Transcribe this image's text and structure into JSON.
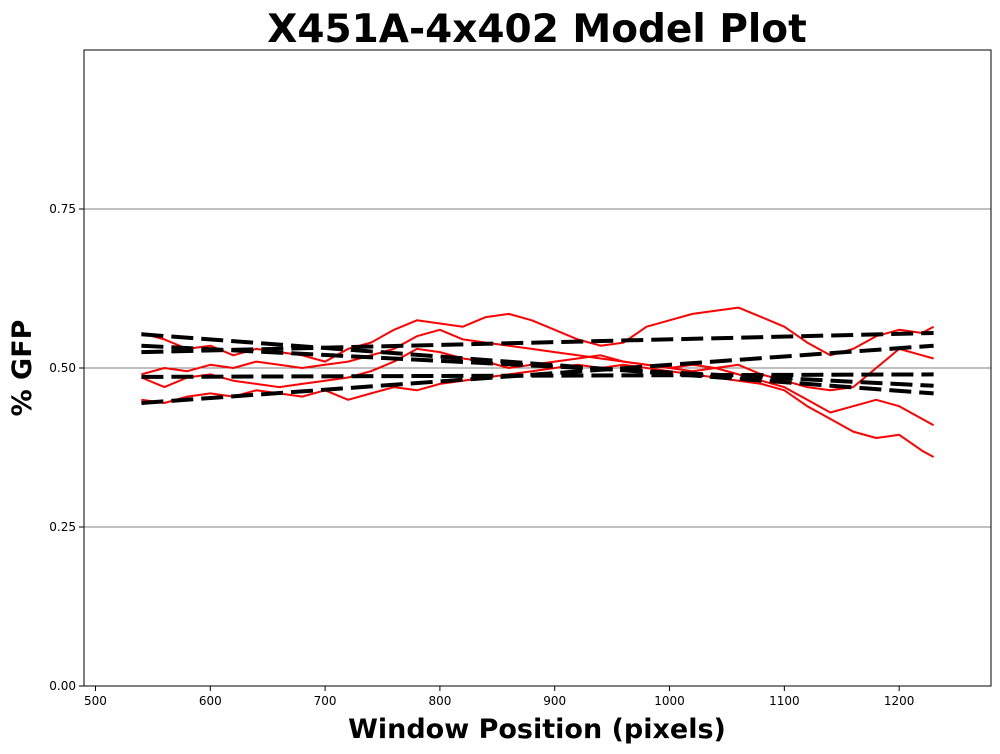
{
  "chart_data": {
    "type": "line",
    "title": "X451A-4x402 Model Plot",
    "xlabel": "Window Position (pixels)",
    "ylabel": "% GFP",
    "xlim": [
      490,
      1280
    ],
    "ylim": [
      0,
      1.0
    ],
    "x_ticks": [
      500,
      600,
      700,
      800,
      900,
      1000,
      1100,
      1200
    ],
    "y_ticks": [
      0.0,
      0.25,
      0.5,
      0.75
    ],
    "x_tick_labels": [
      "500",
      "600",
      "700",
      "800",
      "900",
      "1000",
      "1100",
      "1200"
    ],
    "y_tick_labels": [
      "0.00",
      "0.25",
      "0.50",
      "0.75"
    ],
    "grid": "horizontal lines at y ticks",
    "legend": "none",
    "colors": {
      "data": "#ff0000",
      "model": "#000000",
      "grid": "#808080"
    },
    "series": [
      {
        "style": "data",
        "x": [
          540,
          560,
          580,
          600,
          620,
          640,
          660,
          680,
          700,
          720,
          740,
          760,
          780,
          800,
          820,
          840,
          860,
          880,
          900,
          920,
          940,
          960,
          980,
          1000,
          1020,
          1040,
          1060,
          1080,
          1100,
          1120,
          1140,
          1160,
          1180,
          1200,
          1220,
          1230
        ],
        "y": [
          0.555,
          0.545,
          0.53,
          0.535,
          0.52,
          0.53,
          0.525,
          0.52,
          0.51,
          0.53,
          0.54,
          0.56,
          0.575,
          0.57,
          0.565,
          0.58,
          0.585,
          0.575,
          0.56,
          0.545,
          0.535,
          0.54,
          0.565,
          0.575,
          0.585,
          0.59,
          0.595,
          0.58,
          0.565,
          0.54,
          0.52,
          0.53,
          0.55,
          0.56,
          0.555,
          0.565
        ]
      },
      {
        "style": "data",
        "x": [
          540,
          560,
          580,
          600,
          620,
          640,
          660,
          680,
          700,
          720,
          740,
          760,
          780,
          800,
          820,
          840,
          860,
          880,
          900,
          920,
          940,
          960,
          980,
          1000,
          1020,
          1040,
          1060,
          1080,
          1100,
          1120,
          1140,
          1160,
          1180,
          1200,
          1220,
          1230
        ],
        "y": [
          0.49,
          0.5,
          0.495,
          0.505,
          0.5,
          0.51,
          0.505,
          0.5,
          0.505,
          0.51,
          0.52,
          0.53,
          0.55,
          0.56,
          0.545,
          0.54,
          0.535,
          0.53,
          0.525,
          0.52,
          0.515,
          0.51,
          0.505,
          0.5,
          0.505,
          0.5,
          0.505,
          0.49,
          0.48,
          0.47,
          0.465,
          0.47,
          0.5,
          0.53,
          0.52,
          0.515
        ]
      },
      {
        "style": "data",
        "x": [
          540,
          560,
          580,
          600,
          620,
          640,
          660,
          680,
          700,
          720,
          740,
          760,
          780,
          800,
          820,
          840,
          860,
          880,
          900,
          920,
          940,
          960,
          980,
          1000,
          1020,
          1040,
          1060,
          1080,
          1100,
          1120,
          1140,
          1160,
          1180,
          1200,
          1220,
          1230
        ],
        "y": [
          0.485,
          0.47,
          0.485,
          0.49,
          0.48,
          0.475,
          0.47,
          0.475,
          0.48,
          0.485,
          0.495,
          0.51,
          0.53,
          0.525,
          0.515,
          0.51,
          0.5,
          0.505,
          0.51,
          0.515,
          0.52,
          0.51,
          0.505,
          0.5,
          0.495,
          0.5,
          0.49,
          0.48,
          0.47,
          0.45,
          0.43,
          0.44,
          0.45,
          0.44,
          0.42,
          0.41
        ]
      },
      {
        "style": "data",
        "x": [
          540,
          560,
          580,
          600,
          620,
          640,
          660,
          680,
          700,
          720,
          740,
          760,
          780,
          800,
          820,
          840,
          860,
          880,
          900,
          920,
          940,
          960,
          980,
          1000,
          1020,
          1040,
          1060,
          1080,
          1100,
          1120,
          1140,
          1160,
          1180,
          1200,
          1220,
          1230
        ],
        "y": [
          0.45,
          0.445,
          0.455,
          0.46,
          0.455,
          0.465,
          0.46,
          0.455,
          0.465,
          0.45,
          0.46,
          0.47,
          0.465,
          0.475,
          0.48,
          0.485,
          0.49,
          0.495,
          0.5,
          0.505,
          0.5,
          0.505,
          0.5,
          0.495,
          0.49,
          0.485,
          0.48,
          0.475,
          0.465,
          0.44,
          0.42,
          0.4,
          0.39,
          0.395,
          0.37,
          0.36
        ]
      },
      {
        "style": "model",
        "x": [
          540,
          1230
        ],
        "y": [
          0.553,
          0.46
        ]
      },
      {
        "style": "model",
        "x": [
          540,
          1230
        ],
        "y": [
          0.535,
          0.472
        ]
      },
      {
        "style": "model",
        "x": [
          540,
          1230
        ],
        "y": [
          0.525,
          0.555
        ]
      },
      {
        "style": "model",
        "x": [
          540,
          1230
        ],
        "y": [
          0.486,
          0.49
        ]
      },
      {
        "style": "model",
        "x": [
          540,
          1230
        ],
        "y": [
          0.445,
          0.535
        ]
      }
    ]
  }
}
